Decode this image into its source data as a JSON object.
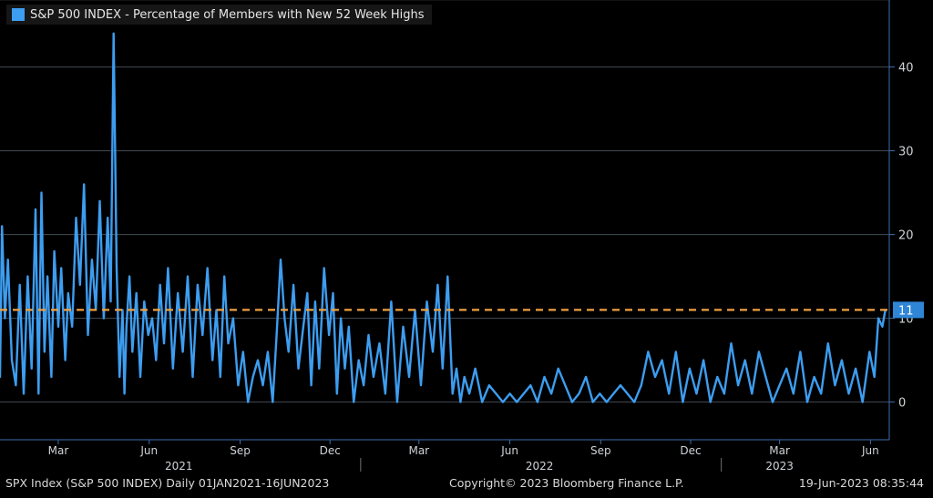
{
  "legend": {
    "label": "S&P 500 INDEX - Percentage of Members with New 52 Week Highs",
    "color": "#3d9df0"
  },
  "footer": {
    "left": "SPX Index (S&P 500 INDEX)  Daily 01JAN2021-16JUN2023",
    "middle": "Copyright© 2023 Bloomberg Finance L.P.",
    "right": "19-Jun-2023 08:35:44"
  },
  "colors": {
    "background": "#000000",
    "series": "#3d9df0",
    "reference": "#f0a040",
    "grid": "#5a6470",
    "axis": "#3a6fb0"
  },
  "chart_data": {
    "type": "line",
    "title": "S&P 500 INDEX - Percentage of Members with New 52 Week Highs",
    "xlabel": "",
    "ylabel": "",
    "ylim": [
      -4.5,
      48
    ],
    "xlim": [
      "2021-01-01",
      "2023-06-20"
    ],
    "y_ticks": [
      0,
      10,
      20,
      30,
      40
    ],
    "grid": true,
    "y_axis_side": "right",
    "legend_position": "top-left",
    "month_ticks": [
      {
        "date": "2021-03-01",
        "label": "Mar"
      },
      {
        "date": "2021-06-01",
        "label": "Jun"
      },
      {
        "date": "2021-09-01",
        "label": "Sep"
      },
      {
        "date": "2021-12-01",
        "label": "Dec"
      },
      {
        "date": "2022-03-01",
        "label": "Mar"
      },
      {
        "date": "2022-06-01",
        "label": "Jun"
      },
      {
        "date": "2022-09-01",
        "label": "Sep"
      },
      {
        "date": "2022-12-01",
        "label": "Dec"
      },
      {
        "date": "2023-03-01",
        "label": "Mar"
      },
      {
        "date": "2023-06-01",
        "label": "Jun"
      }
    ],
    "year_labels": [
      {
        "date": "2021-07-01",
        "label": "2021"
      },
      {
        "date": "2022-07-01",
        "label": "2022"
      },
      {
        "date": "2023-03-01",
        "label": "2023"
      }
    ],
    "year_separators": [
      "2022-01-01",
      "2023-01-01"
    ],
    "reference_line": {
      "value": 11,
      "label": "11"
    },
    "series": [
      {
        "name": "S&P 500 INDEX - Percentage of Members with New 52 Week Highs",
        "x": [
          "2021-01-01",
          "2021-01-03",
          "2021-01-06",
          "2021-01-09",
          "2021-01-13",
          "2021-01-17",
          "2021-01-21",
          "2021-01-25",
          "2021-01-29",
          "2021-02-02",
          "2021-02-06",
          "2021-02-09",
          "2021-02-12",
          "2021-02-15",
          "2021-02-18",
          "2021-02-22",
          "2021-02-25",
          "2021-03-01",
          "2021-03-04",
          "2021-03-08",
          "2021-03-11",
          "2021-03-15",
          "2021-03-19",
          "2021-03-23",
          "2021-03-27",
          "2021-03-31",
          "2021-04-04",
          "2021-04-08",
          "2021-04-12",
          "2021-04-16",
          "2021-04-20",
          "2021-04-23",
          "2021-04-26",
          "2021-04-29",
          "2021-05-02",
          "2021-05-05",
          "2021-05-07",
          "2021-05-09",
          "2021-05-12",
          "2021-05-15",
          "2021-05-19",
          "2021-05-23",
          "2021-05-27",
          "2021-05-31",
          "2021-06-04",
          "2021-06-08",
          "2021-06-12",
          "2021-06-16",
          "2021-06-20",
          "2021-06-25",
          "2021-06-30",
          "2021-07-05",
          "2021-07-10",
          "2021-07-15",
          "2021-07-20",
          "2021-07-25",
          "2021-07-30",
          "2021-08-04",
          "2021-08-08",
          "2021-08-12",
          "2021-08-16",
          "2021-08-20",
          "2021-08-25",
          "2021-08-30",
          "2021-09-04",
          "2021-09-09",
          "2021-09-14",
          "2021-09-19",
          "2021-09-24",
          "2021-09-29",
          "2021-10-04",
          "2021-10-08",
          "2021-10-12",
          "2021-10-16",
          "2021-10-20",
          "2021-10-25",
          "2021-10-30",
          "2021-11-04",
          "2021-11-08",
          "2021-11-12",
          "2021-11-16",
          "2021-11-20",
          "2021-11-25",
          "2021-11-30",
          "2021-12-04",
          "2021-12-08",
          "2021-12-12",
          "2021-12-16",
          "2021-12-20",
          "2021-12-25",
          "2021-12-30",
          "2022-01-04",
          "2022-01-09",
          "2022-01-14",
          "2022-01-20",
          "2022-01-26",
          "2022-02-01",
          "2022-02-07",
          "2022-02-13",
          "2022-02-19",
          "2022-02-25",
          "2022-03-03",
          "2022-03-09",
          "2022-03-15",
          "2022-03-20",
          "2022-03-25",
          "2022-03-30",
          "2022-04-04",
          "2022-04-08",
          "2022-04-12",
          "2022-04-16",
          "2022-04-21",
          "2022-04-27",
          "2022-05-04",
          "2022-05-11",
          "2022-05-18",
          "2022-05-25",
          "2022-06-01",
          "2022-06-08",
          "2022-06-15",
          "2022-06-22",
          "2022-06-29",
          "2022-07-06",
          "2022-07-13",
          "2022-07-20",
          "2022-07-27",
          "2022-08-03",
          "2022-08-10",
          "2022-08-17",
          "2022-08-24",
          "2022-08-31",
          "2022-09-07",
          "2022-09-14",
          "2022-09-21",
          "2022-09-28",
          "2022-10-05",
          "2022-10-12",
          "2022-10-19",
          "2022-10-26",
          "2022-11-02",
          "2022-11-09",
          "2022-11-16",
          "2022-11-23",
          "2022-11-30",
          "2022-12-07",
          "2022-12-14",
          "2022-12-21",
          "2022-12-28",
          "2023-01-04",
          "2023-01-11",
          "2023-01-18",
          "2023-01-25",
          "2023-02-01",
          "2023-02-08",
          "2023-02-15",
          "2023-02-22",
          "2023-03-01",
          "2023-03-08",
          "2023-03-15",
          "2023-03-22",
          "2023-03-29",
          "2023-04-05",
          "2023-04-12",
          "2023-04-19",
          "2023-04-26",
          "2023-05-03",
          "2023-05-10",
          "2023-05-17",
          "2023-05-24",
          "2023-05-31",
          "2023-06-05",
          "2023-06-09",
          "2023-06-13",
          "2023-06-16"
        ],
        "y": [
          3,
          21,
          10,
          17,
          5,
          2,
          14,
          1,
          15,
          4,
          23,
          1,
          25,
          6,
          15,
          3,
          18,
          9,
          16,
          5,
          13,
          9,
          22,
          14,
          26,
          8,
          17,
          11,
          24,
          10,
          22,
          12,
          44,
          16,
          3,
          11,
          1,
          9,
          15,
          6,
          13,
          3,
          12,
          8,
          10,
          5,
          14,
          7,
          16,
          4,
          13,
          6,
          15,
          3,
          14,
          8,
          16,
          5,
          11,
          3,
          15,
          7,
          10,
          2,
          6,
          0,
          3,
          5,
          2,
          6,
          0,
          8,
          17,
          10,
          6,
          14,
          4,
          9,
          13,
          2,
          12,
          4,
          16,
          8,
          13,
          1,
          10,
          4,
          9,
          0,
          5,
          2,
          8,
          3,
          7,
          1,
          12,
          0,
          9,
          3,
          11,
          2,
          12,
          6,
          14,
          4,
          15,
          1,
          4,
          0,
          3,
          1,
          4,
          0,
          2,
          1,
          0,
          1,
          0,
          1,
          2,
          0,
          3,
          1,
          4,
          2,
          0,
          1,
          3,
          0,
          1,
          0,
          1,
          2,
          1,
          0,
          2,
          6,
          3,
          5,
          1,
          6,
          0,
          4,
          1,
          5,
          0,
          3,
          1,
          7,
          2,
          5,
          1,
          6,
          3,
          0,
          2,
          4,
          1,
          6,
          0,
          3,
          1,
          7,
          2,
          5,
          1,
          4,
          0,
          6,
          3,
          10,
          9,
          11
        ]
      }
    ]
  }
}
